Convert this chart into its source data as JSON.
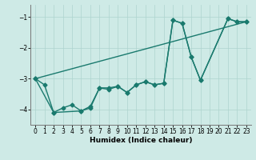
{
  "xlabel": "Humidex (Indice chaleur)",
  "bg_color": "#ceeae6",
  "line_color": "#1a7a6e",
  "grid_color": "#aed4cf",
  "xlim": [
    -0.5,
    23.5
  ],
  "ylim": [
    -4.5,
    -0.6
  ],
  "yticks": [
    -4,
    -3,
    -2,
    -1
  ],
  "xticks": [
    0,
    1,
    2,
    3,
    4,
    5,
    6,
    7,
    8,
    9,
    10,
    11,
    12,
    13,
    14,
    15,
    16,
    17,
    18,
    19,
    20,
    21,
    22,
    23
  ],
  "series1_x": [
    0,
    1,
    2,
    3,
    4,
    5,
    6,
    7,
    8,
    9,
    10,
    11,
    12,
    13,
    14,
    15,
    16,
    17,
    18,
    21,
    22,
    23
  ],
  "series1_y": [
    -3.0,
    -3.2,
    -4.1,
    -3.95,
    -3.85,
    -4.05,
    -3.95,
    -3.3,
    -3.3,
    -3.25,
    -3.45,
    -3.2,
    -3.1,
    -3.2,
    -3.15,
    -1.1,
    -1.2,
    -2.3,
    -3.05,
    -1.05,
    -1.15,
    -1.15
  ],
  "series2_x": [
    0,
    2,
    5,
    6,
    7,
    8,
    9,
    10,
    11,
    12,
    13,
    14,
    15,
    16,
    17,
    18,
    21,
    22,
    23
  ],
  "series2_y": [
    -3.0,
    -4.1,
    -4.05,
    -3.9,
    -3.3,
    -3.35,
    -3.25,
    -3.45,
    -3.2,
    -3.1,
    -3.2,
    -3.15,
    -1.1,
    -1.2,
    -2.3,
    -3.05,
    -1.05,
    -1.15,
    -1.15
  ],
  "series3_x": [
    0,
    23
  ],
  "series3_y": [
    -3.0,
    -1.15
  ],
  "marker": "D",
  "markersize": 2.5,
  "linewidth": 1.0
}
